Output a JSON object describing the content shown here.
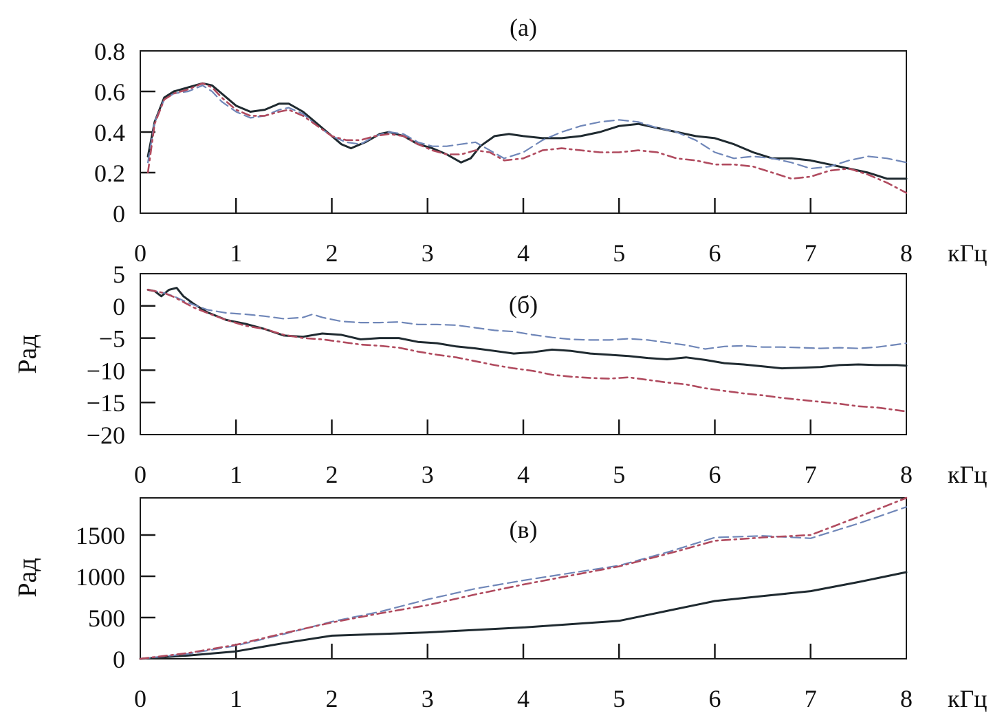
{
  "figure": {
    "unit_label": "кГц",
    "line_colors": {
      "solid": "#1f2a30",
      "dashed": "#6f86b8",
      "dashdot": "#b04a5e"
    },
    "line_styles": [
      "solid",
      "dashed",
      "dashdot"
    ]
  },
  "chart_data": [
    {
      "type": "line",
      "panel_label": "(а)",
      "ylabel": "",
      "xlabel": "кГц",
      "xlim": [
        0,
        8
      ],
      "ylim": [
        0,
        0.8
      ],
      "xticks": [
        "0",
        "1",
        "2",
        "3",
        "4",
        "5",
        "6",
        "7",
        "8"
      ],
      "yticks": [
        "0",
        "0.2",
        "0.4",
        "0.6",
        "0.8"
      ],
      "grid": false,
      "series": [
        {
          "style": "solid",
          "x": [
            0.08,
            0.15,
            0.25,
            0.35,
            0.5,
            0.65,
            0.75,
            0.85,
            1.0,
            1.15,
            1.3,
            1.45,
            1.55,
            1.7,
            1.85,
            2.0,
            2.1,
            2.2,
            2.35,
            2.5,
            2.6,
            2.75,
            2.9,
            3.05,
            3.2,
            3.35,
            3.45,
            3.55,
            3.7,
            3.85,
            4.0,
            4.2,
            4.4,
            4.6,
            4.8,
            5.0,
            5.2,
            5.4,
            5.6,
            5.8,
            6.0,
            6.2,
            6.4,
            6.6,
            6.8,
            7.0,
            7.2,
            7.4,
            7.6,
            7.8,
            8.0
          ],
          "values": [
            0.28,
            0.45,
            0.57,
            0.6,
            0.62,
            0.64,
            0.63,
            0.59,
            0.53,
            0.5,
            0.51,
            0.54,
            0.54,
            0.5,
            0.44,
            0.38,
            0.34,
            0.32,
            0.35,
            0.39,
            0.4,
            0.38,
            0.34,
            0.32,
            0.29,
            0.25,
            0.27,
            0.33,
            0.38,
            0.39,
            0.38,
            0.37,
            0.37,
            0.38,
            0.4,
            0.43,
            0.44,
            0.42,
            0.4,
            0.38,
            0.37,
            0.34,
            0.3,
            0.27,
            0.27,
            0.26,
            0.24,
            0.22,
            0.2,
            0.17,
            0.17
          ]
        },
        {
          "style": "dashed",
          "x": [
            0.08,
            0.15,
            0.25,
            0.35,
            0.5,
            0.65,
            0.75,
            0.85,
            1.0,
            1.15,
            1.3,
            1.45,
            1.55,
            1.7,
            1.85,
            2.0,
            2.15,
            2.3,
            2.45,
            2.6,
            2.75,
            2.9,
            3.05,
            3.2,
            3.35,
            3.5,
            3.65,
            3.8,
            4.0,
            4.2,
            4.4,
            4.6,
            4.8,
            5.0,
            5.2,
            5.4,
            5.6,
            5.8,
            6.0,
            6.2,
            6.4,
            6.6,
            6.8,
            7.0,
            7.2,
            7.4,
            7.6,
            7.8,
            8.0
          ],
          "values": [
            0.25,
            0.45,
            0.56,
            0.59,
            0.6,
            0.63,
            0.6,
            0.55,
            0.5,
            0.47,
            0.48,
            0.51,
            0.52,
            0.49,
            0.43,
            0.38,
            0.35,
            0.34,
            0.38,
            0.4,
            0.39,
            0.35,
            0.33,
            0.33,
            0.34,
            0.35,
            0.31,
            0.27,
            0.3,
            0.36,
            0.4,
            0.43,
            0.45,
            0.46,
            0.45,
            0.42,
            0.4,
            0.36,
            0.3,
            0.27,
            0.28,
            0.27,
            0.25,
            0.22,
            0.23,
            0.26,
            0.28,
            0.27,
            0.25
          ]
        },
        {
          "style": "dashdot",
          "x": [
            0.08,
            0.15,
            0.25,
            0.35,
            0.5,
            0.65,
            0.75,
            0.85,
            1.0,
            1.15,
            1.3,
            1.45,
            1.55,
            1.7,
            1.85,
            2.0,
            2.15,
            2.3,
            2.45,
            2.6,
            2.75,
            2.9,
            3.05,
            3.2,
            3.35,
            3.5,
            3.65,
            3.8,
            4.0,
            4.2,
            4.4,
            4.6,
            4.8,
            5.0,
            5.2,
            5.4,
            5.6,
            5.8,
            6.0,
            6.2,
            6.4,
            6.6,
            6.8,
            7.0,
            7.2,
            7.4,
            7.6,
            7.8,
            8.0
          ],
          "values": [
            0.2,
            0.44,
            0.56,
            0.59,
            0.61,
            0.64,
            0.62,
            0.57,
            0.51,
            0.48,
            0.48,
            0.5,
            0.51,
            0.48,
            0.43,
            0.38,
            0.36,
            0.36,
            0.38,
            0.39,
            0.38,
            0.34,
            0.31,
            0.29,
            0.29,
            0.31,
            0.3,
            0.26,
            0.27,
            0.31,
            0.32,
            0.31,
            0.3,
            0.3,
            0.31,
            0.3,
            0.27,
            0.26,
            0.24,
            0.24,
            0.23,
            0.2,
            0.17,
            0.18,
            0.21,
            0.22,
            0.19,
            0.15,
            0.1
          ]
        }
      ]
    },
    {
      "type": "line",
      "panel_label": "(б)",
      "ylabel": "Рад",
      "xlabel": "кГц",
      "xlim": [
        0,
        8
      ],
      "ylim": [
        -20,
        5
      ],
      "xticks": [
        "0",
        "1",
        "2",
        "3",
        "4",
        "5",
        "6",
        "7",
        "8"
      ],
      "yticks": [
        "5",
        "0",
        "−5",
        "−10",
        "−15",
        "−20"
      ],
      "grid": false,
      "series": [
        {
          "style": "solid",
          "x": [
            0.08,
            0.15,
            0.22,
            0.3,
            0.38,
            0.45,
            0.55,
            0.7,
            0.9,
            1.1,
            1.3,
            1.5,
            1.7,
            1.9,
            2.1,
            2.3,
            2.5,
            2.7,
            2.9,
            3.1,
            3.3,
            3.5,
            3.7,
            3.9,
            4.1,
            4.3,
            4.5,
            4.7,
            4.9,
            5.1,
            5.3,
            5.5,
            5.7,
            5.9,
            6.1,
            6.3,
            6.5,
            6.7,
            6.9,
            7.1,
            7.3,
            7.5,
            7.7,
            7.9,
            8.0
          ],
          "values": [
            2.5,
            2.3,
            1.5,
            2.5,
            2.8,
            1.5,
            0.4,
            -1.0,
            -2.2,
            -2.8,
            -3.6,
            -4.6,
            -4.8,
            -4.3,
            -4.5,
            -5.2,
            -5.0,
            -5.0,
            -5.6,
            -5.8,
            -6.3,
            -6.6,
            -7.0,
            -7.4,
            -7.2,
            -6.8,
            -7.0,
            -7.4,
            -7.6,
            -7.8,
            -8.1,
            -8.3,
            -8.0,
            -8.4,
            -8.9,
            -9.1,
            -9.4,
            -9.7,
            -9.6,
            -9.5,
            -9.2,
            -9.1,
            -9.2,
            -9.2,
            -9.3
          ]
        },
        {
          "style": "dashed",
          "x": [
            0.08,
            0.15,
            0.25,
            0.35,
            0.45,
            0.55,
            0.7,
            0.9,
            1.1,
            1.3,
            1.5,
            1.7,
            1.8,
            1.9,
            2.1,
            2.3,
            2.5,
            2.7,
            2.9,
            3.1,
            3.3,
            3.5,
            3.7,
            3.9,
            4.1,
            4.3,
            4.5,
            4.7,
            4.9,
            5.1,
            5.3,
            5.5,
            5.7,
            5.9,
            6.1,
            6.3,
            6.5,
            6.7,
            6.9,
            7.1,
            7.3,
            7.5,
            7.7,
            7.9,
            8.0
          ],
          "values": [
            2.5,
            2.3,
            2.0,
            1.5,
            0.8,
            0.2,
            -0.6,
            -1.1,
            -1.3,
            -1.6,
            -2.0,
            -1.8,
            -1.3,
            -1.8,
            -2.4,
            -2.6,
            -2.6,
            -2.5,
            -2.9,
            -2.9,
            -3.0,
            -3.4,
            -3.8,
            -4.0,
            -4.5,
            -4.9,
            -5.2,
            -5.3,
            -5.3,
            -5.1,
            -5.3,
            -5.7,
            -6.1,
            -6.7,
            -6.3,
            -6.2,
            -6.4,
            -6.4,
            -6.5,
            -6.6,
            -6.5,
            -6.6,
            -6.4,
            -6.0,
            -5.8
          ]
        },
        {
          "style": "dashdot",
          "x": [
            0.08,
            0.15,
            0.25,
            0.35,
            0.45,
            0.55,
            0.7,
            0.9,
            1.1,
            1.3,
            1.5,
            1.7,
            1.9,
            2.1,
            2.3,
            2.5,
            2.7,
            2.9,
            3.1,
            3.3,
            3.5,
            3.7,
            3.9,
            4.1,
            4.3,
            4.5,
            4.7,
            4.9,
            5.1,
            5.3,
            5.5,
            5.7,
            5.9,
            6.1,
            6.3,
            6.5,
            6.7,
            6.9,
            7.1,
            7.3,
            7.5,
            7.7,
            7.9,
            8.0
          ],
          "values": [
            2.5,
            2.3,
            2.0,
            1.4,
            0.6,
            -0.2,
            -1.1,
            -2.2,
            -3.1,
            -3.6,
            -4.5,
            -5.0,
            -5.2,
            -5.6,
            -6.0,
            -6.2,
            -6.5,
            -7.1,
            -7.6,
            -8.0,
            -8.6,
            -9.2,
            -9.7,
            -10.1,
            -10.7,
            -11.0,
            -11.2,
            -11.3,
            -11.1,
            -11.5,
            -11.9,
            -12.2,
            -12.8,
            -13.2,
            -13.6,
            -13.9,
            -14.3,
            -14.6,
            -14.9,
            -15.2,
            -15.6,
            -15.8,
            -16.2,
            -16.4
          ]
        }
      ]
    },
    {
      "type": "line",
      "panel_label": "(в)",
      "ylabel": "Рад",
      "xlabel": "кГц",
      "xlim": [
        0,
        8
      ],
      "ylim": [
        0,
        1950
      ],
      "xticks": [
        "0",
        "1",
        "2",
        "3",
        "4",
        "5",
        "6",
        "7",
        "8"
      ],
      "yticks": [
        "0",
        "500",
        "1000",
        "1500"
      ],
      "ytick_values": [
        0,
        500,
        1000,
        1500
      ],
      "grid": false,
      "series": [
        {
          "style": "solid",
          "x": [
            0,
            0.5,
            1.0,
            1.5,
            2.0,
            2.5,
            3.0,
            3.5,
            4.0,
            4.5,
            5.0,
            5.5,
            6.0,
            6.5,
            7.0,
            7.5,
            8.0
          ],
          "values": [
            0,
            40,
            90,
            190,
            280,
            300,
            320,
            350,
            380,
            420,
            460,
            580,
            700,
            760,
            820,
            930,
            1050
          ]
        },
        {
          "style": "dashed",
          "x": [
            0,
            0.5,
            1.0,
            1.5,
            2.0,
            2.5,
            3.0,
            3.5,
            4.0,
            4.5,
            5.0,
            5.5,
            6.0,
            6.5,
            7.0,
            7.5,
            8.0
          ],
          "values": [
            0,
            60,
            160,
            300,
            450,
            570,
            720,
            850,
            950,
            1040,
            1130,
            1290,
            1470,
            1490,
            1460,
            1640,
            1840
          ]
        },
        {
          "style": "dashdot",
          "x": [
            0,
            0.5,
            1.0,
            1.5,
            2.0,
            2.5,
            3.0,
            3.5,
            4.0,
            4.5,
            5.0,
            5.5,
            6.0,
            6.5,
            7.0,
            7.5,
            8.0
          ],
          "values": [
            0,
            70,
            170,
            310,
            440,
            550,
            650,
            780,
            900,
            1010,
            1120,
            1270,
            1430,
            1470,
            1500,
            1720,
            1950
          ]
        }
      ]
    }
  ]
}
